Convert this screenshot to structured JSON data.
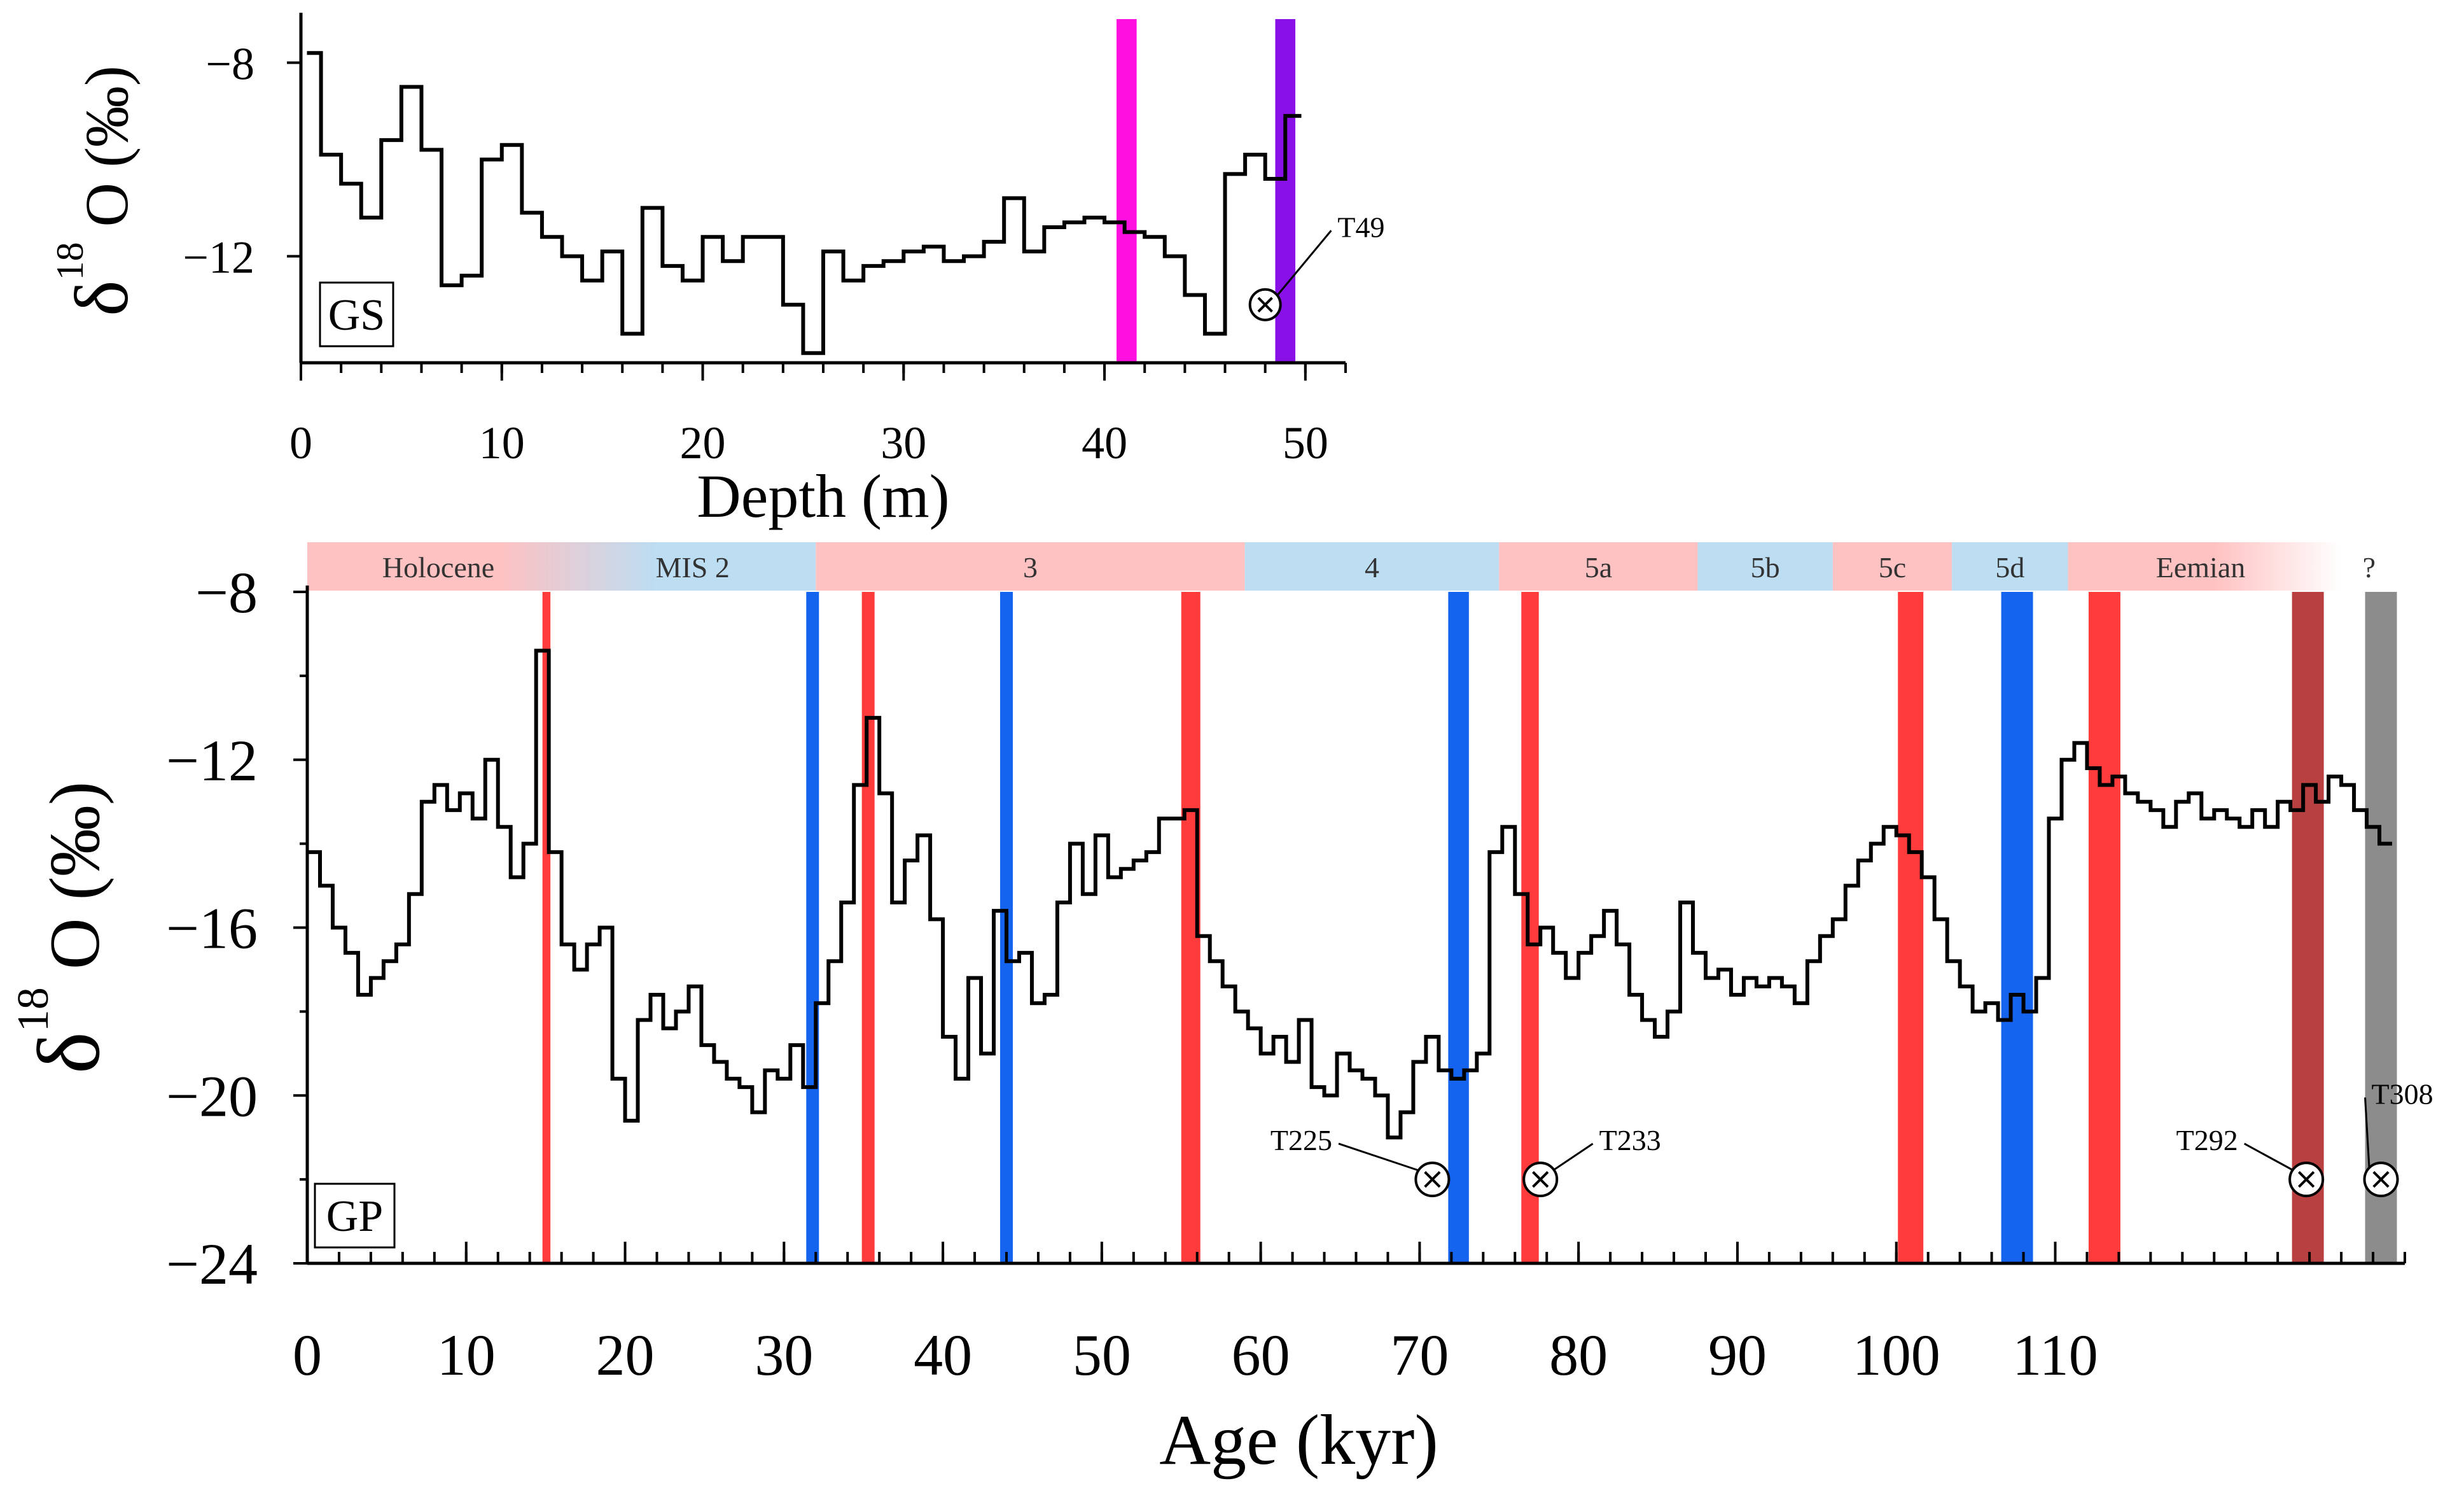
{
  "chart_data": [
    {
      "type": "line",
      "panel_label": "GS",
      "xlabel": "Depth (m)",
      "ylabel_main": "δ",
      "ylabel_sup": "18",
      "ylabel_tail": "O (‰)",
      "xlim": [
        0,
        52
      ],
      "ylim": [
        -14.2,
        -7.1
      ],
      "x_ticks": [
        0,
        10,
        20,
        30,
        40,
        50
      ],
      "x_minor_step": 2,
      "y_ticks": [
        -8,
        -12
      ],
      "bands": [
        {
          "x0": 40.6,
          "x1": 41.6,
          "color": "#FF10E0"
        },
        {
          "x0": 48.5,
          "x1": 49.5,
          "color": "#8A10E8"
        }
      ],
      "markers": [
        {
          "label": "T49",
          "x": 48.0,
          "y": -13.0,
          "label_x": 51.6,
          "label_y": -11.6
        }
      ],
      "step_x": [
        0.3,
        1.0,
        2.0,
        3.0,
        4.0,
        5.0,
        6.0,
        7.0,
        8.0,
        9.0,
        10.0,
        11.0,
        12.0,
        13.0,
        14.0,
        15.0,
        16.0,
        17.0,
        18.0,
        19.0,
        20.0,
        21.0,
        22.0,
        23.0,
        24.0,
        25.0,
        26.0,
        27.0,
        28.0,
        29.0,
        30.0,
        31.0,
        32.0,
        33.0,
        34.0,
        35.0,
        36.0,
        37.0,
        38.0,
        39.0,
        40.0,
        41.0,
        42.0,
        43.0,
        44.0,
        45.0,
        46.0,
        47.0,
        48.0,
        49.0,
        49.8
      ],
      "step_y": [
        -7.8,
        -9.9,
        -10.5,
        -11.2,
        -9.6,
        -8.5,
        -9.8,
        -12.6,
        -12.4,
        -10.0,
        -9.7,
        -11.1,
        -11.6,
        -12.0,
        -12.5,
        -11.9,
        -13.6,
        -11.0,
        -12.2,
        -12.5,
        -11.6,
        -12.1,
        -11.6,
        -11.6,
        -13.0,
        -14.0,
        -11.9,
        -12.5,
        -12.2,
        -12.1,
        -11.9,
        -11.8,
        -12.1,
        -12.0,
        -11.7,
        -10.8,
        -11.9,
        -11.4,
        -11.3,
        -11.2,
        -11.3,
        -11.5,
        -11.6,
        -12.0,
        -12.8,
        -13.6,
        -10.3,
        -9.9,
        -10.4,
        -9.1
      ]
    },
    {
      "type": "line",
      "panel_label": "GP",
      "xlabel": "Age (kyr)",
      "ylabel_main": "δ",
      "ylabel_sup": "18",
      "ylabel_tail": "O (‰)",
      "xlim": [
        0,
        132
      ],
      "ylim": [
        -24,
        -8
      ],
      "x_ticks": [
        0,
        10,
        20,
        30,
        40,
        50,
        60,
        70,
        80,
        90,
        100,
        110
      ],
      "x_minor_step": 2,
      "y_ticks": [
        -8,
        -12,
        -16,
        -20,
        -24
      ],
      "stages": [
        {
          "label": "Holocene",
          "x0": 0,
          "x1": 16.5,
          "color": "#FFC2C2"
        },
        {
          "label": "MIS 2",
          "x0": 16.5,
          "x1": 32,
          "color": "#BCDDF2"
        },
        {
          "label": "3",
          "x0": 32,
          "x1": 59,
          "color": "#FFC2C2"
        },
        {
          "label": "4",
          "x0": 59,
          "x1": 75,
          "color": "#BCDDF2"
        },
        {
          "label": "5a",
          "x0": 75,
          "x1": 87.5,
          "color": "#FFC2C2"
        },
        {
          "label": "5b",
          "x0": 87.5,
          "x1": 96,
          "color": "#BCDDF2"
        },
        {
          "label": "5c",
          "x0": 96,
          "x1": 103.5,
          "color": "#FFC2C2"
        },
        {
          "label": "5d",
          "x0": 103.5,
          "x1": 110.8,
          "color": "#BCDDF2"
        },
        {
          "label": "Eemian",
          "x0": 110.8,
          "x1": 127.5,
          "color": "#FFC2C2"
        },
        {
          "label": "?",
          "x0": 127.5,
          "x1": 132,
          "color": "#FFFFFF"
        }
      ],
      "bands": [
        {
          "x0": 14.8,
          "x1": 15.3,
          "color": "#FF3B3B"
        },
        {
          "x0": 31.4,
          "x1": 32.2,
          "color": "#1464F0"
        },
        {
          "x0": 34.9,
          "x1": 35.7,
          "color": "#FF3B3B"
        },
        {
          "x0": 43.6,
          "x1": 44.4,
          "color": "#1464F0"
        },
        {
          "x0": 55.0,
          "x1": 56.2,
          "color": "#FF3B3B"
        },
        {
          "x0": 71.8,
          "x1": 73.1,
          "color": "#1464F0"
        },
        {
          "x0": 76.4,
          "x1": 77.5,
          "color": "#FF3B3B"
        },
        {
          "x0": 100.1,
          "x1": 101.7,
          "color": "#FF3B3B"
        },
        {
          "x0": 106.6,
          "x1": 108.6,
          "color": "#1464F0"
        },
        {
          "x0": 112.1,
          "x1": 114.1,
          "color": "#FF3B3B"
        },
        {
          "x0": 124.9,
          "x1": 126.9,
          "color": "#B84040"
        },
        {
          "x0": 129.5,
          "x1": 131.5,
          "color": "#8C8C8C"
        }
      ],
      "markers": [
        {
          "label": "T225",
          "x": 70.8,
          "y": -22.0,
          "label_x": 64.5,
          "label_y": -21.3,
          "anchor": "end"
        },
        {
          "label": "T233",
          "x": 77.6,
          "y": -22.0,
          "label_x": 81.3,
          "label_y": -21.3,
          "anchor": "start"
        },
        {
          "label": "T292",
          "x": 125.8,
          "y": -22.0,
          "label_x": 121.5,
          "label_y": -21.3,
          "anchor": "end"
        },
        {
          "label": "T308",
          "x": 130.5,
          "y": -22.0,
          "label_x": 129.9,
          "label_y": -20.2,
          "anchor": "start"
        }
      ],
      "step_x": [
        0,
        0.8,
        1.6,
        2.4,
        3.2,
        4.0,
        4.8,
        5.6,
        6.4,
        7.2,
        8.0,
        8.8,
        9.6,
        10.4,
        11.2,
        12.0,
        12.8,
        13.6,
        14.4,
        15.2,
        16.0,
        16.8,
        17.6,
        18.4,
        19.2,
        20.0,
        20.8,
        21.6,
        22.4,
        23.2,
        24.0,
        24.8,
        25.6,
        26.4,
        27.2,
        28.0,
        28.8,
        29.6,
        30.4,
        31.2,
        32.0,
        32.8,
        33.6,
        34.4,
        35.2,
        36.0,
        36.8,
        37.6,
        38.4,
        39.2,
        40.0,
        40.8,
        41.6,
        42.4,
        43.2,
        44.0,
        44.8,
        45.6,
        46.4,
        47.2,
        48.0,
        48.8,
        49.6,
        50.4,
        51.2,
        52.0,
        52.8,
        53.6,
        54.4,
        55.2,
        56.0,
        56.8,
        57.6,
        58.4,
        59.2,
        60.0,
        60.8,
        61.6,
        62.4,
        63.2,
        64.0,
        64.8,
        65.6,
        66.4,
        67.2,
        68.0,
        68.8,
        69.6,
        70.4,
        71.2,
        72.0,
        72.8,
        73.6,
        74.4,
        75.2,
        76.0,
        76.8,
        77.6,
        78.4,
        79.2,
        80.0,
        80.8,
        81.6,
        82.4,
        83.2,
        84.0,
        84.8,
        85.6,
        86.4,
        87.2,
        88.0,
        88.8,
        89.6,
        90.4,
        91.2,
        92.0,
        92.8,
        93.6,
        94.4,
        95.2,
        96.0,
        96.8,
        97.6,
        98.4,
        99.2,
        100.0,
        100.8,
        101.6,
        102.4,
        103.2,
        104.0,
        104.8,
        105.6,
        106.4,
        107.2,
        108.0,
        108.8,
        109.6,
        110.4,
        111.2,
        112.0,
        112.8,
        113.6,
        114.4,
        115.2,
        116.0,
        116.8,
        117.6,
        118.4,
        119.2,
        120.0,
        120.8,
        121.6,
        122.4,
        123.2,
        124.0,
        124.8,
        125.6,
        126.4,
        127.2,
        128.0,
        128.8,
        129.6,
        130.4,
        131.2
      ],
      "step_y": [
        -14.2,
        -15.0,
        -16.0,
        -16.6,
        -17.6,
        -17.2,
        -16.8,
        -16.4,
        -15.2,
        -13.0,
        -12.6,
        -13.2,
        -12.8,
        -13.4,
        -12.0,
        -13.6,
        -14.8,
        -14.0,
        -9.4,
        -14.2,
        -16.4,
        -17.0,
        -16.4,
        -16.0,
        -19.6,
        -20.6,
        -18.2,
        -17.6,
        -18.4,
        -18.0,
        -17.4,
        -18.8,
        -19.2,
        -19.6,
        -19.8,
        -20.4,
        -19.4,
        -19.6,
        -18.8,
        -19.8,
        -17.8,
        -16.8,
        -15.4,
        -12.6,
        -11.0,
        -12.8,
        -15.4,
        -14.4,
        -13.8,
        -15.8,
        -18.6,
        -19.6,
        -17.2,
        -19.0,
        -15.6,
        -16.8,
        -16.6,
        -17.8,
        -17.6,
        -15.4,
        -14.0,
        -15.2,
        -13.8,
        -14.8,
        -14.6,
        -14.4,
        -14.2,
        -13.4,
        -13.4,
        -13.2,
        -16.2,
        -16.8,
        -17.4,
        -18.0,
        -18.4,
        -19.0,
        -18.6,
        -19.2,
        -18.2,
        -19.8,
        -20.0,
        -19.0,
        -19.4,
        -19.6,
        -20.0,
        -21.0,
        -20.4,
        -19.2,
        -18.6,
        -19.4,
        -19.6,
        -19.4,
        -19.0,
        -14.2,
        -13.6,
        -15.2,
        -16.4,
        -16.0,
        -16.6,
        -17.2,
        -16.6,
        -16.2,
        -15.6,
        -16.4,
        -17.6,
        -18.2,
        -18.6,
        -18.0,
        -15.4,
        -16.6,
        -17.2,
        -17.0,
        -17.6,
        -17.2,
        -17.4,
        -17.2,
        -17.4,
        -17.8,
        -16.8,
        -16.2,
        -15.8,
        -15.0,
        -14.4,
        -14.0,
        -13.6,
        -13.8,
        -14.2,
        -14.8,
        -15.8,
        -16.8,
        -17.4,
        -18.0,
        -17.8,
        -18.2,
        -17.6,
        -18.0,
        -17.2,
        -13.4,
        -12.0,
        -11.6,
        -12.2,
        -12.6,
        -12.4,
        -12.8,
        -13.0,
        -13.2,
        -13.6,
        -13.0,
        -12.8,
        -13.4,
        -13.2,
        -13.4,
        -13.6,
        -13.2,
        -13.6,
        -13.0,
        -13.2,
        -12.6,
        -13.0,
        -12.4,
        -12.6,
        -13.2,
        -13.6,
        -14.0
      ]
    }
  ]
}
